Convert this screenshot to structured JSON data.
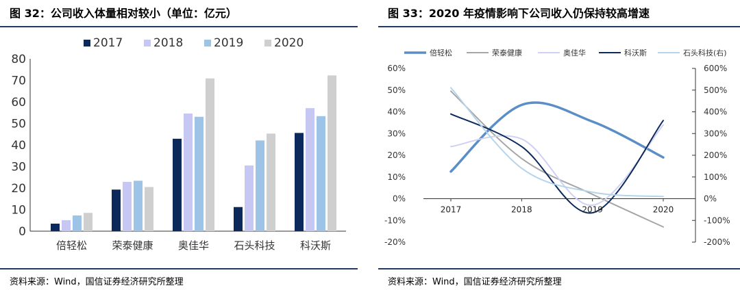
{
  "left": {
    "title": "图 32：公司收入体量相对较小（单位：亿元）",
    "source": "资料来源：Wind，国信证券经济研究所整理"
  },
  "right": {
    "title": "图 33：2020 年疫情影响下公司收入仍保持较高增速",
    "source": "资料来源：Wind，国信证券经济研究所整理"
  },
  "chart_data": [
    {
      "type": "bar",
      "title": "公司收入体量相对较小（单位：亿元）",
      "categories": [
        "倍轻松",
        "荣泰健康",
        "奥佳华",
        "石头科技",
        "科沃斯"
      ],
      "series": [
        {
          "name": "2017",
          "color": "#0b2a5b",
          "values": [
            3.5,
            19.3,
            42.9,
            11.2,
            45.6
          ]
        },
        {
          "name": "2018",
          "color": "#c6c8f3",
          "values": [
            5.1,
            22.9,
            54.6,
            30.5,
            57.1
          ]
        },
        {
          "name": "2019",
          "color": "#9dc3e6",
          "values": [
            7.3,
            23.4,
            53.1,
            42.1,
            53.4
          ]
        },
        {
          "name": "2020",
          "color": "#cfcfcf",
          "values": [
            8.5,
            20.5,
            70.9,
            45.3,
            72.3
          ]
        }
      ],
      "ylim": [
        0,
        80
      ],
      "yticks": [
        0,
        10,
        20,
        30,
        40,
        50,
        60,
        70,
        80
      ],
      "legend": "top"
    },
    {
      "type": "line",
      "title": "2020 年疫情影响下公司收入仍保持较高增速",
      "categories": [
        "2017",
        "2018",
        "2019",
        "2020"
      ],
      "series": [
        {
          "name": "倍轻松",
          "color": "#5b8ec7",
          "width": 3.5,
          "axis": "left",
          "values": [
            12.5,
            43.2,
            35.5,
            19.0
          ]
        },
        {
          "name": "荣泰健康",
          "color": "#a6a6a6",
          "width": 2,
          "axis": "left",
          "values": [
            49.5,
            18.5,
            2.0,
            -13.0
          ]
        },
        {
          "name": "奥佳华",
          "color": "#cfd0f4",
          "width": 2,
          "axis": "left",
          "values": [
            24.0,
            27.5,
            -3.0,
            34.0
          ]
        },
        {
          "name": "科沃斯",
          "color": "#0b2a5b",
          "width": 2,
          "axis": "left",
          "values": [
            39.0,
            24.0,
            -6.5,
            36.0
          ]
        },
        {
          "name": "石头科技(右)",
          "color": "#b4d4ec",
          "width": 2,
          "axis": "right",
          "values": [
            511,
            140,
            30,
            10
          ]
        }
      ],
      "ylim_left": [
        -20,
        60
      ],
      "yticks_left": [
        "-20%",
        "-10%",
        "0%",
        "10%",
        "20%",
        "30%",
        "40%",
        "50%",
        "60%"
      ],
      "ylim_right": [
        -200,
        600
      ],
      "yticks_right": [
        "-200%",
        "-100%",
        "0%",
        "100%",
        "200%",
        "300%",
        "400%",
        "500%",
        "600%"
      ],
      "legend": "top"
    }
  ]
}
